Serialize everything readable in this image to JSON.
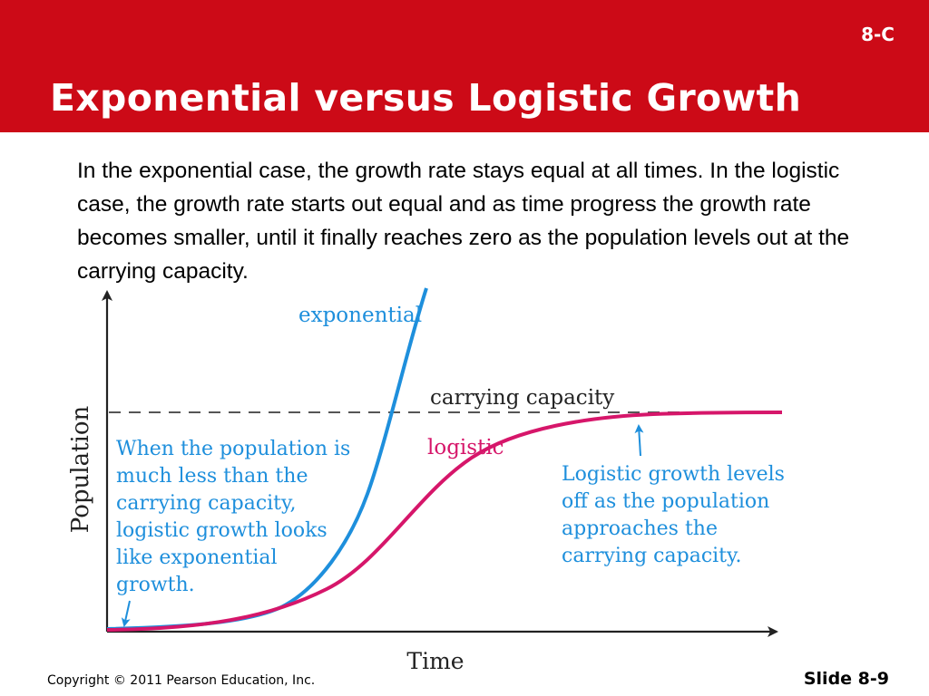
{
  "header": {
    "slide_code": "8-C",
    "title": "Exponential versus Logistic Growth"
  },
  "body_text": "In the exponential case, the growth rate stays equal at all times. In the logistic case, the growth rate starts out equal and as time progress the growth rate becomes smaller, until it finally reaches zero as the population levels out at the carrying capacity.",
  "diagram": {
    "y_axis_label": "Population",
    "x_axis_label": "Time",
    "exponential_label": "exponential",
    "logistic_label": "logistic",
    "carrying_capacity_label": "carrying capacity",
    "annotation_left": [
      "When the population is",
      "much less than the",
      "carrying capacity,",
      "logistic growth looks",
      "like exponential",
      "growth."
    ],
    "annotation_right": [
      "Logistic growth levels",
      "off as the population",
      "approaches the",
      "carrying capacity."
    ],
    "colors": {
      "exponential": "#1e8fdc",
      "logistic": "#d6166a",
      "annotation": "#1e8fdc",
      "axis": "#222222",
      "dashed": "#555555"
    }
  },
  "footer": {
    "copyright": "Copyright © 2011 Pearson Education, Inc.",
    "slide_number": "Slide 8-9"
  }
}
